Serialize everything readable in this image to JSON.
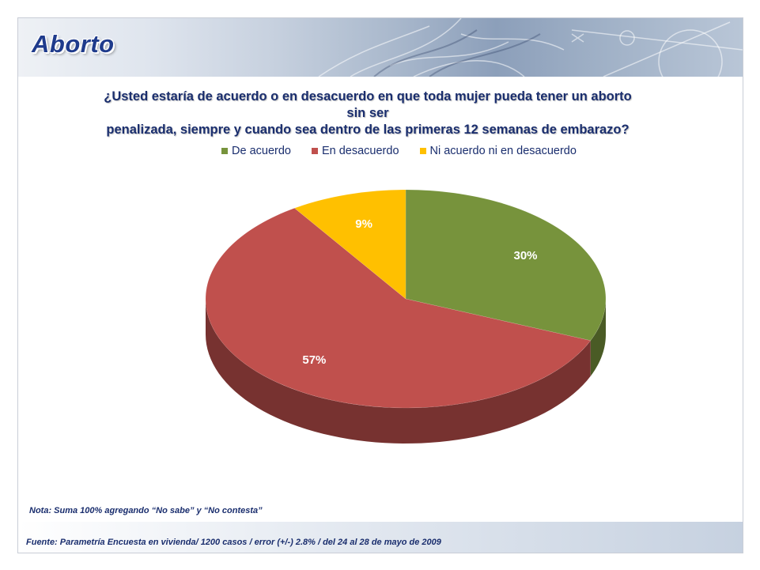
{
  "header": {
    "title": "Aborto"
  },
  "question": {
    "line1": "¿Usted estaría de acuerdo o en desacuerdo en  que toda mujer pueda tener un aborto sin ser",
    "line2": "penalizada, siempre y cuando sea dentro de las primeras 12 semanas de embarazo?"
  },
  "chart_data": {
    "type": "pie",
    "categories": [
      "De acuerdo",
      "En desacuerdo",
      "Ni acuerdo ni en desacuerdo"
    ],
    "values": [
      30,
      57,
      9
    ],
    "labels": [
      "30%",
      "57%",
      "9%"
    ],
    "colors": [
      "#77933c",
      "#c0504d",
      "#ffc000"
    ],
    "legend": "top",
    "style": "3d"
  },
  "note": "Nota: Suma 100% agregando “No sabe” y  “No contesta”",
  "source": "Fuente: Parametría Encuesta en vivienda/ 1200 casos / error (+/-) 2.8% / del 24 al 28 de mayo de 2009"
}
